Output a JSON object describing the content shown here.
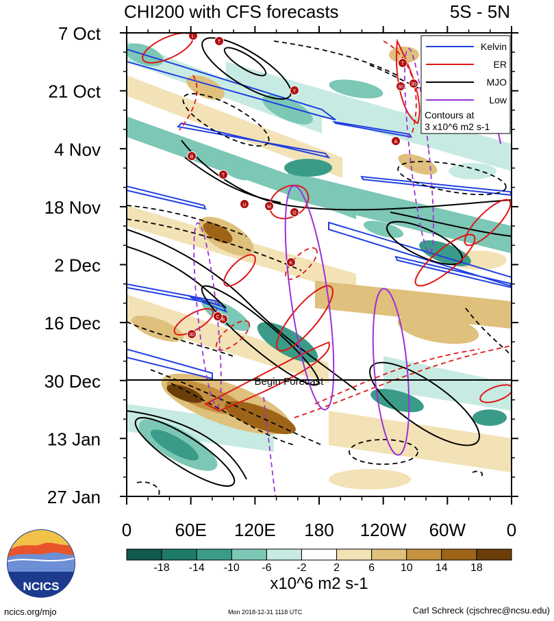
{
  "chart_data": {
    "type": "heatmap",
    "title": "CHI200 with CFS forecasts",
    "region_label": "5S - 5N",
    "y_tick_labels": [
      "7 Oct",
      "21 Oct",
      "4 Nov",
      "18 Nov",
      "2 Dec",
      "16 Dec",
      "30 Dec",
      "13 Jan",
      "27 Jan"
    ],
    "x_tick_labels": [
      "0",
      "60E",
      "120E",
      "180",
      "120W",
      "60W",
      "0"
    ],
    "xlim": [
      0,
      360
    ],
    "forecast_line_label": "Begin Forecast",
    "colorbar": {
      "labels": [
        "-18",
        "-14",
        "-10",
        "-6",
        "-2",
        "2",
        "6",
        "10",
        "14",
        "18"
      ],
      "colors": [
        "#0f5a4c",
        "#1e7a68",
        "#3a9c88",
        "#7cc7b5",
        "#c7ebe2",
        "#ffffff",
        "#f2e2b6",
        "#dfc07c",
        "#c4913f",
        "#9d6418",
        "#6b3d09"
      ],
      "units": "x10^6 m2 s-1"
    },
    "legend": {
      "items": [
        {
          "label": "Kelvin",
          "color": "#1f3fe0"
        },
        {
          "label": "ER",
          "color": "#e01515"
        },
        {
          "label": "MJO",
          "color": "#000000"
        },
        {
          "label": "Low",
          "color": "#9b30d9"
        }
      ],
      "note_line1": "Contours at",
      "note_line2": "3 x10^6 m2 s-1"
    },
    "markers": [
      "L",
      "T",
      "Y",
      "30",
      "T",
      "30",
      "A",
      "B",
      "T",
      "U",
      "M",
      "O",
      "K",
      "B",
      "C",
      "30"
    ]
  },
  "logo": {
    "text": "NCICS"
  },
  "footer": {
    "left": "ncics.org/mjo",
    "center": "Mon 2018-12-31 1118 UTC",
    "right": "Carl Schreck (cjschrec@ncsu.edu)"
  }
}
